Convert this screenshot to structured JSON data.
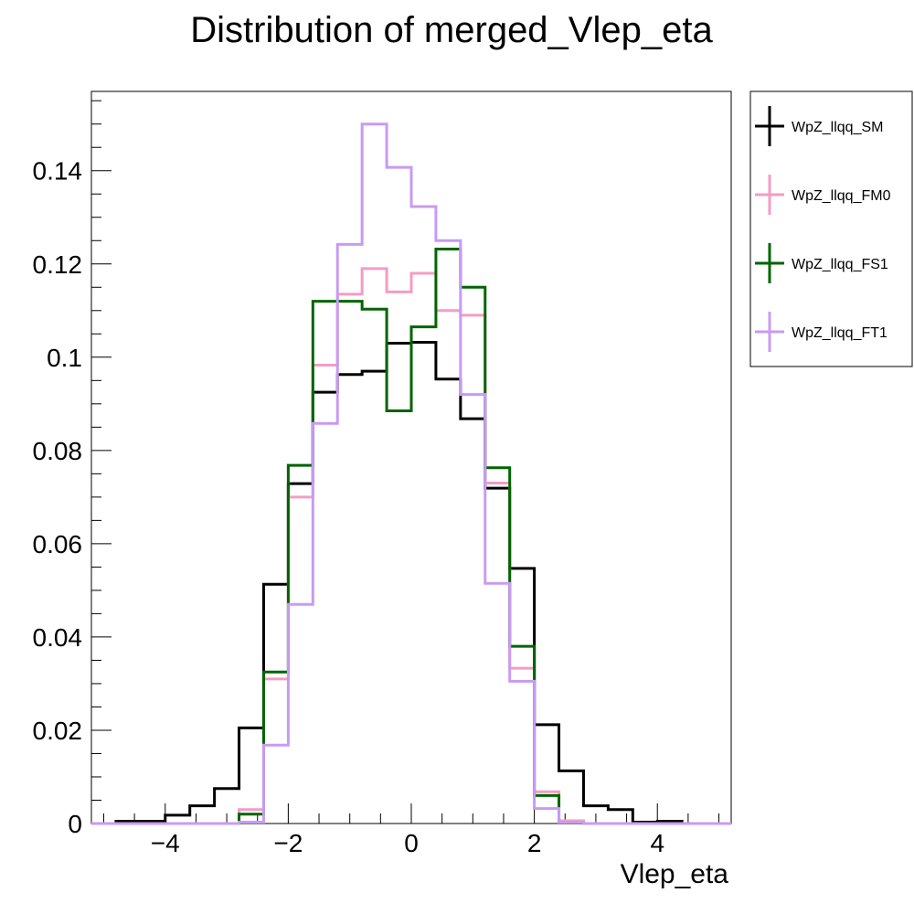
{
  "chart_data": {
    "type": "line",
    "title": "Distribution of merged_Vlep_eta",
    "xlabel": "Vlep_eta",
    "ylabel": "",
    "xlim": [
      -5.2,
      5.2
    ],
    "ylim": [
      0,
      0.157
    ],
    "grid": false,
    "legend_position": "right",
    "x_ticks": [
      -4,
      -2,
      0,
      2,
      4
    ],
    "x_tick_labels": [
      "−4",
      "−2",
      "0",
      "2",
      "4"
    ],
    "y_ticks": [
      0,
      0.02,
      0.04,
      0.06,
      0.08,
      0.1,
      0.12,
      0.14
    ],
    "y_tick_labels": [
      "0",
      "0.02",
      "0.04",
      "0.06",
      "0.08",
      "0.1",
      "0.12",
      "0.14"
    ],
    "bin_edges": [
      -5.2,
      -4.8,
      -4.4,
      -4.0,
      -3.6,
      -3.2,
      -2.8,
      -2.4,
      -2.0,
      -1.6,
      -1.2,
      -0.8,
      -0.4,
      0.0,
      0.4,
      0.8,
      1.2,
      1.6,
      2.0,
      2.4,
      2.8,
      3.2,
      3.6,
      4.0,
      4.4,
      4.8,
      5.2
    ],
    "series": [
      {
        "name": "WpZ_llqq_SM",
        "color": "#000000",
        "values": [
          0,
          0.0005,
          0.0005,
          0.0018,
          0.0038,
          0.0075,
          0.0205,
          0.0513,
          0.0729,
          0.0925,
          0.0963,
          0.097,
          0.103,
          0.1032,
          0.0953,
          0.0868,
          0.0719,
          0.0547,
          0.0212,
          0.0113,
          0.0038,
          0.003,
          0.0003,
          0.0005,
          0,
          0
        ]
      },
      {
        "name": "WpZ_llqq_FM0",
        "color": "#f49cc4",
        "values": [
          0,
          0,
          0,
          0,
          0,
          0,
          0.003,
          0.031,
          0.07,
          0.0983,
          0.1135,
          0.119,
          0.114,
          0.118,
          0.11,
          0.109,
          0.073,
          0.0333,
          0.0068,
          0.0006,
          0,
          0,
          0,
          0,
          0,
          0
        ]
      },
      {
        "name": "WpZ_llqq_FS1",
        "color": "#006400",
        "values": [
          0,
          0,
          0,
          0,
          0,
          0,
          0.002,
          0.0325,
          0.0768,
          0.112,
          0.112,
          0.1103,
          0.0885,
          0.1065,
          0.1232,
          0.115,
          0.0763,
          0.038,
          0.006,
          0.0003,
          0,
          0,
          0,
          0,
          0,
          0
        ]
      },
      {
        "name": "WpZ_llqq_FT1",
        "color": "#c89bf2",
        "values": [
          0,
          0,
          0,
          0,
          0,
          0,
          0.0003,
          0.0168,
          0.047,
          0.0858,
          0.1242,
          0.15,
          0.1407,
          0.1323,
          0.125,
          0.092,
          0.0515,
          0.0305,
          0.0032,
          0.0003,
          0,
          0,
          0,
          0,
          0,
          0
        ]
      }
    ]
  }
}
